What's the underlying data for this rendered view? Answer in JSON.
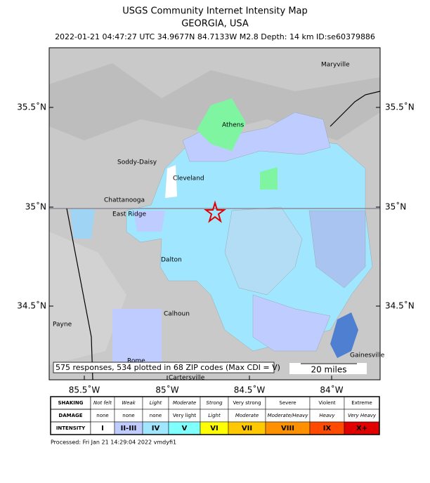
{
  "header": {
    "title": "USGS Community Internet Intensity Map",
    "region": "GEORGIA, USA",
    "event": "2022-01-21 04:47:27 UTC 34.9677N 84.7133W M2.8 Depth: 14 km ID:se60379886"
  },
  "map": {
    "lat_labels": [
      "35.5˚N",
      "35˚N",
      "34.5˚N"
    ],
    "lon_labels": [
      "85.5˚W",
      "85˚W",
      "84.5˚W",
      "84˚W"
    ],
    "cities": [
      "Maryville",
      "Athens",
      "Soddy-Daisy",
      "Cleveland",
      "Chattanooga",
      "East Ridge",
      "Dalton",
      "Calhoun",
      "Payne",
      "Gainesville",
      "Rome",
      "Cartersville"
    ],
    "note": "575 responses, 534 plotted in 68 ZIP codes (Max CDI = V)",
    "scale": "20 miles"
  },
  "legend": {
    "rows": [
      {
        "label": "SHAKING",
        "cells": [
          "Not felt",
          "Weak",
          "Light",
          "Moderate",
          "Strong",
          "Very strong",
          "Severe",
          "Violent",
          "Extreme"
        ]
      },
      {
        "label": "DAMAGE",
        "cells": [
          "none",
          "none",
          "none",
          "Very light",
          "Light",
          "Moderate",
          "Moderate/Heavy",
          "Heavy",
          "Very Heavy"
        ]
      },
      {
        "label": "INTENSITY",
        "cells": [
          "I",
          "II-III",
          "IV",
          "V",
          "VI",
          "VII",
          "VIII",
          "IX",
          "X+"
        ]
      }
    ],
    "colors": [
      "#ffffff",
      "#bfccff",
      "#a0e6ff",
      "#80ffff",
      "#ffff00",
      "#ffc800",
      "#ff9100",
      "#ff4a00",
      "#e00000"
    ]
  },
  "footer": "Processed: Fri Jan 21 14:29:04 2022 vmdyfi1"
}
